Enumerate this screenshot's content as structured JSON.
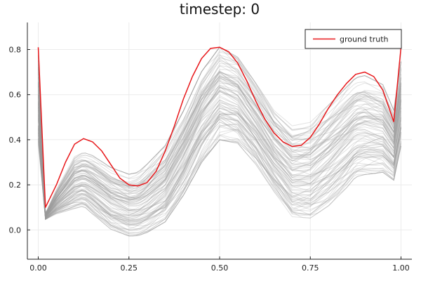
{
  "chart_data": {
    "type": "line",
    "title": "timestep: 0",
    "xlabel": "",
    "ylabel": "",
    "xlim": [
      -0.03,
      1.03
    ],
    "ylim": [
      -0.13,
      0.92
    ],
    "xticks": [
      0.0,
      0.25,
      0.5,
      0.75,
      1.0
    ],
    "xtick_labels": [
      "0.00",
      "0.25",
      "0.50",
      "0.75",
      "1.00"
    ],
    "yticks": [
      0.0,
      0.2,
      0.4,
      0.6,
      0.8
    ],
    "ytick_labels": [
      "0.0",
      "0.2",
      "0.4",
      "0.6",
      "0.8"
    ],
    "grid": true,
    "legend": {
      "position": "top-right",
      "entries": [
        "ground truth"
      ]
    },
    "ground_truth": {
      "name": "ground truth",
      "color": "#e8181b",
      "x": [
        0.0,
        0.02,
        0.05,
        0.075,
        0.1,
        0.125,
        0.15,
        0.175,
        0.2,
        0.225,
        0.25,
        0.275,
        0.3,
        0.325,
        0.35,
        0.375,
        0.4,
        0.425,
        0.45,
        0.475,
        0.5,
        0.525,
        0.55,
        0.575,
        0.6,
        0.625,
        0.65,
        0.675,
        0.7,
        0.725,
        0.75,
        0.775,
        0.8,
        0.825,
        0.85,
        0.875,
        0.9,
        0.925,
        0.95,
        0.98,
        1.0
      ],
      "y": [
        0.81,
        0.1,
        0.2,
        0.3,
        0.38,
        0.405,
        0.39,
        0.35,
        0.29,
        0.23,
        0.2,
        0.195,
        0.21,
        0.26,
        0.35,
        0.46,
        0.58,
        0.68,
        0.76,
        0.805,
        0.81,
        0.79,
        0.74,
        0.66,
        0.57,
        0.49,
        0.43,
        0.39,
        0.37,
        0.375,
        0.41,
        0.47,
        0.54,
        0.6,
        0.65,
        0.69,
        0.7,
        0.68,
        0.62,
        0.48,
        0.81
      ]
    },
    "ensemble": {
      "color": "#9a9a9a",
      "count": 100,
      "envelope_x": [
        0.0,
        0.02,
        0.05,
        0.1,
        0.125,
        0.15,
        0.2,
        0.25,
        0.275,
        0.3,
        0.35,
        0.4,
        0.45,
        0.5,
        0.55,
        0.6,
        0.65,
        0.7,
        0.75,
        0.8,
        0.85,
        0.875,
        0.9,
        0.95,
        0.98,
        1.0
      ],
      "envelope_min": [
        0.3,
        0.04,
        0.05,
        0.05,
        0.06,
        0.02,
        -0.05,
        -0.08,
        -0.08,
        -0.07,
        -0.03,
        0.08,
        0.22,
        0.32,
        0.31,
        0.22,
        0.1,
        -0.02,
        -0.03,
        0.02,
        0.1,
        0.15,
        0.16,
        0.18,
        0.16,
        0.3
      ],
      "envelope_max": [
        0.87,
        0.08,
        0.2,
        0.37,
        0.39,
        0.38,
        0.33,
        0.3,
        0.31,
        0.35,
        0.44,
        0.6,
        0.78,
        0.89,
        0.84,
        0.72,
        0.6,
        0.54,
        0.56,
        0.64,
        0.72,
        0.76,
        0.77,
        0.72,
        0.59,
        0.82
      ]
    }
  }
}
